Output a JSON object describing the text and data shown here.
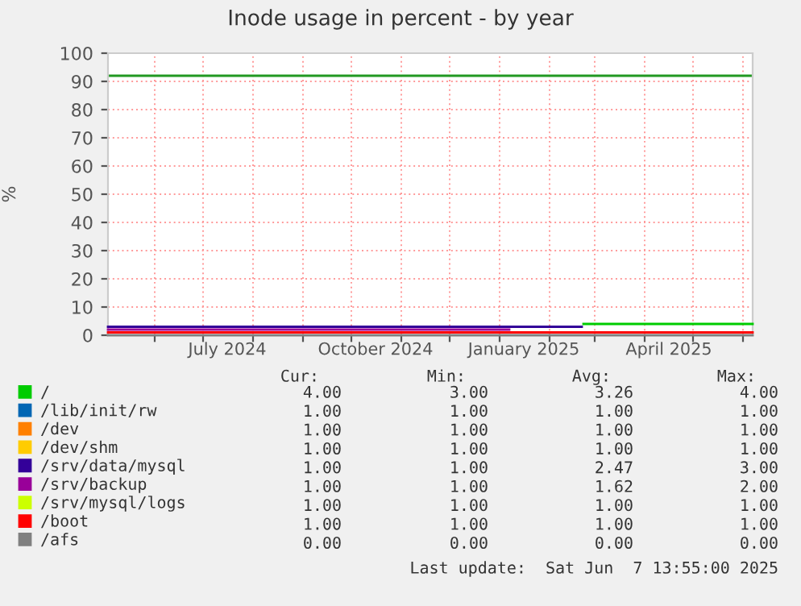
{
  "chart_data": {
    "type": "step",
    "title": "Inode usage in percent - by year",
    "ylabel": "%",
    "xlim": [
      "2024-05-03",
      "2025-06-07"
    ],
    "xticks": [
      {
        "value": "2024-06-01",
        "label": null
      },
      {
        "value": "2024-07-01",
        "label": null
      },
      {
        "value": "2024-07-16",
        "label": "July 2024"
      },
      {
        "value": "2024-08-01",
        "label": null
      },
      {
        "value": "2024-09-01",
        "label": null
      },
      {
        "value": "2024-10-01",
        "label": null
      },
      {
        "value": "2024-10-16",
        "label": "October 2024"
      },
      {
        "value": "2024-11-01",
        "label": null
      },
      {
        "value": "2024-12-01",
        "label": null
      },
      {
        "value": "2025-01-01",
        "label": null
      },
      {
        "value": "2025-01-16",
        "label": "January 2025"
      },
      {
        "value": "2025-02-01",
        "label": null
      },
      {
        "value": "2025-03-01",
        "label": null
      },
      {
        "value": "2025-04-01",
        "label": null
      },
      {
        "value": "2025-04-16",
        "label": "April 2025"
      },
      {
        "value": "2025-05-01",
        "label": null
      },
      {
        "value": "2025-06-01",
        "label": null
      }
    ],
    "ylim": [
      0,
      100
    ],
    "yticks": [
      0,
      10,
      20,
      30,
      40,
      50,
      60,
      70,
      80,
      90,
      100
    ],
    "grid": true,
    "legend": "bottom",
    "ref_lines": [
      {
        "axis": "y",
        "value": 92,
        "color": "#229922"
      }
    ],
    "series": [
      {
        "name": "/",
        "color": "#00cc00",
        "x": [
          "2025-02-22",
          "2025-06-07"
        ],
        "values": [
          4,
          4
        ]
      },
      {
        "name": "/lib/init/rw",
        "color": "#0066b3"
      },
      {
        "name": "/dev",
        "color": "#ff8000"
      },
      {
        "name": "/dev/shm",
        "color": "#ffcc00"
      },
      {
        "name": "/srv/data/mysql",
        "color": "#330099",
        "x": [
          "2024-05-03",
          "2025-02-21"
        ],
        "values": [
          3,
          3
        ]
      },
      {
        "name": "/srv/backup",
        "color": "#990099",
        "x": [
          "2024-05-03",
          "2025-01-07"
        ],
        "values": [
          2,
          2
        ]
      },
      {
        "name": "/srv/mysql/logs",
        "color": "#ccff00"
      },
      {
        "name": "/boot",
        "color": "#ff0000",
        "x": [
          "2024-05-03",
          "2025-06-07"
        ],
        "values": [
          1,
          1
        ]
      },
      {
        "name": "/afs",
        "color": "#808080",
        "x": [
          "2024-05-03",
          "2025-06-07"
        ],
        "values": [
          0,
          0
        ]
      }
    ],
    "annotations": [
      "Cur:",
      "Min:",
      "Avg:",
      "Max:",
      "4.00",
      "3.00",
      "3.26",
      "4.00",
      "1.00",
      "1.00",
      "1.00",
      "1.00",
      "1.00",
      "1.00",
      "1.00",
      "1.00",
      "1.00",
      "1.00",
      "1.00",
      "1.00",
      "1.00",
      "1.00",
      "2.47",
      "3.00",
      "1.00",
      "1.00",
      "1.62",
      "2.00",
      "1.00",
      "1.00",
      "1.00",
      "1.00",
      "1.00",
      "1.00",
      "1.00",
      "1.00",
      "0.00",
      "0.00",
      "0.00",
      "0.00",
      "Last update:  Sat Jun  7 13:55:00 2025"
    ]
  }
}
